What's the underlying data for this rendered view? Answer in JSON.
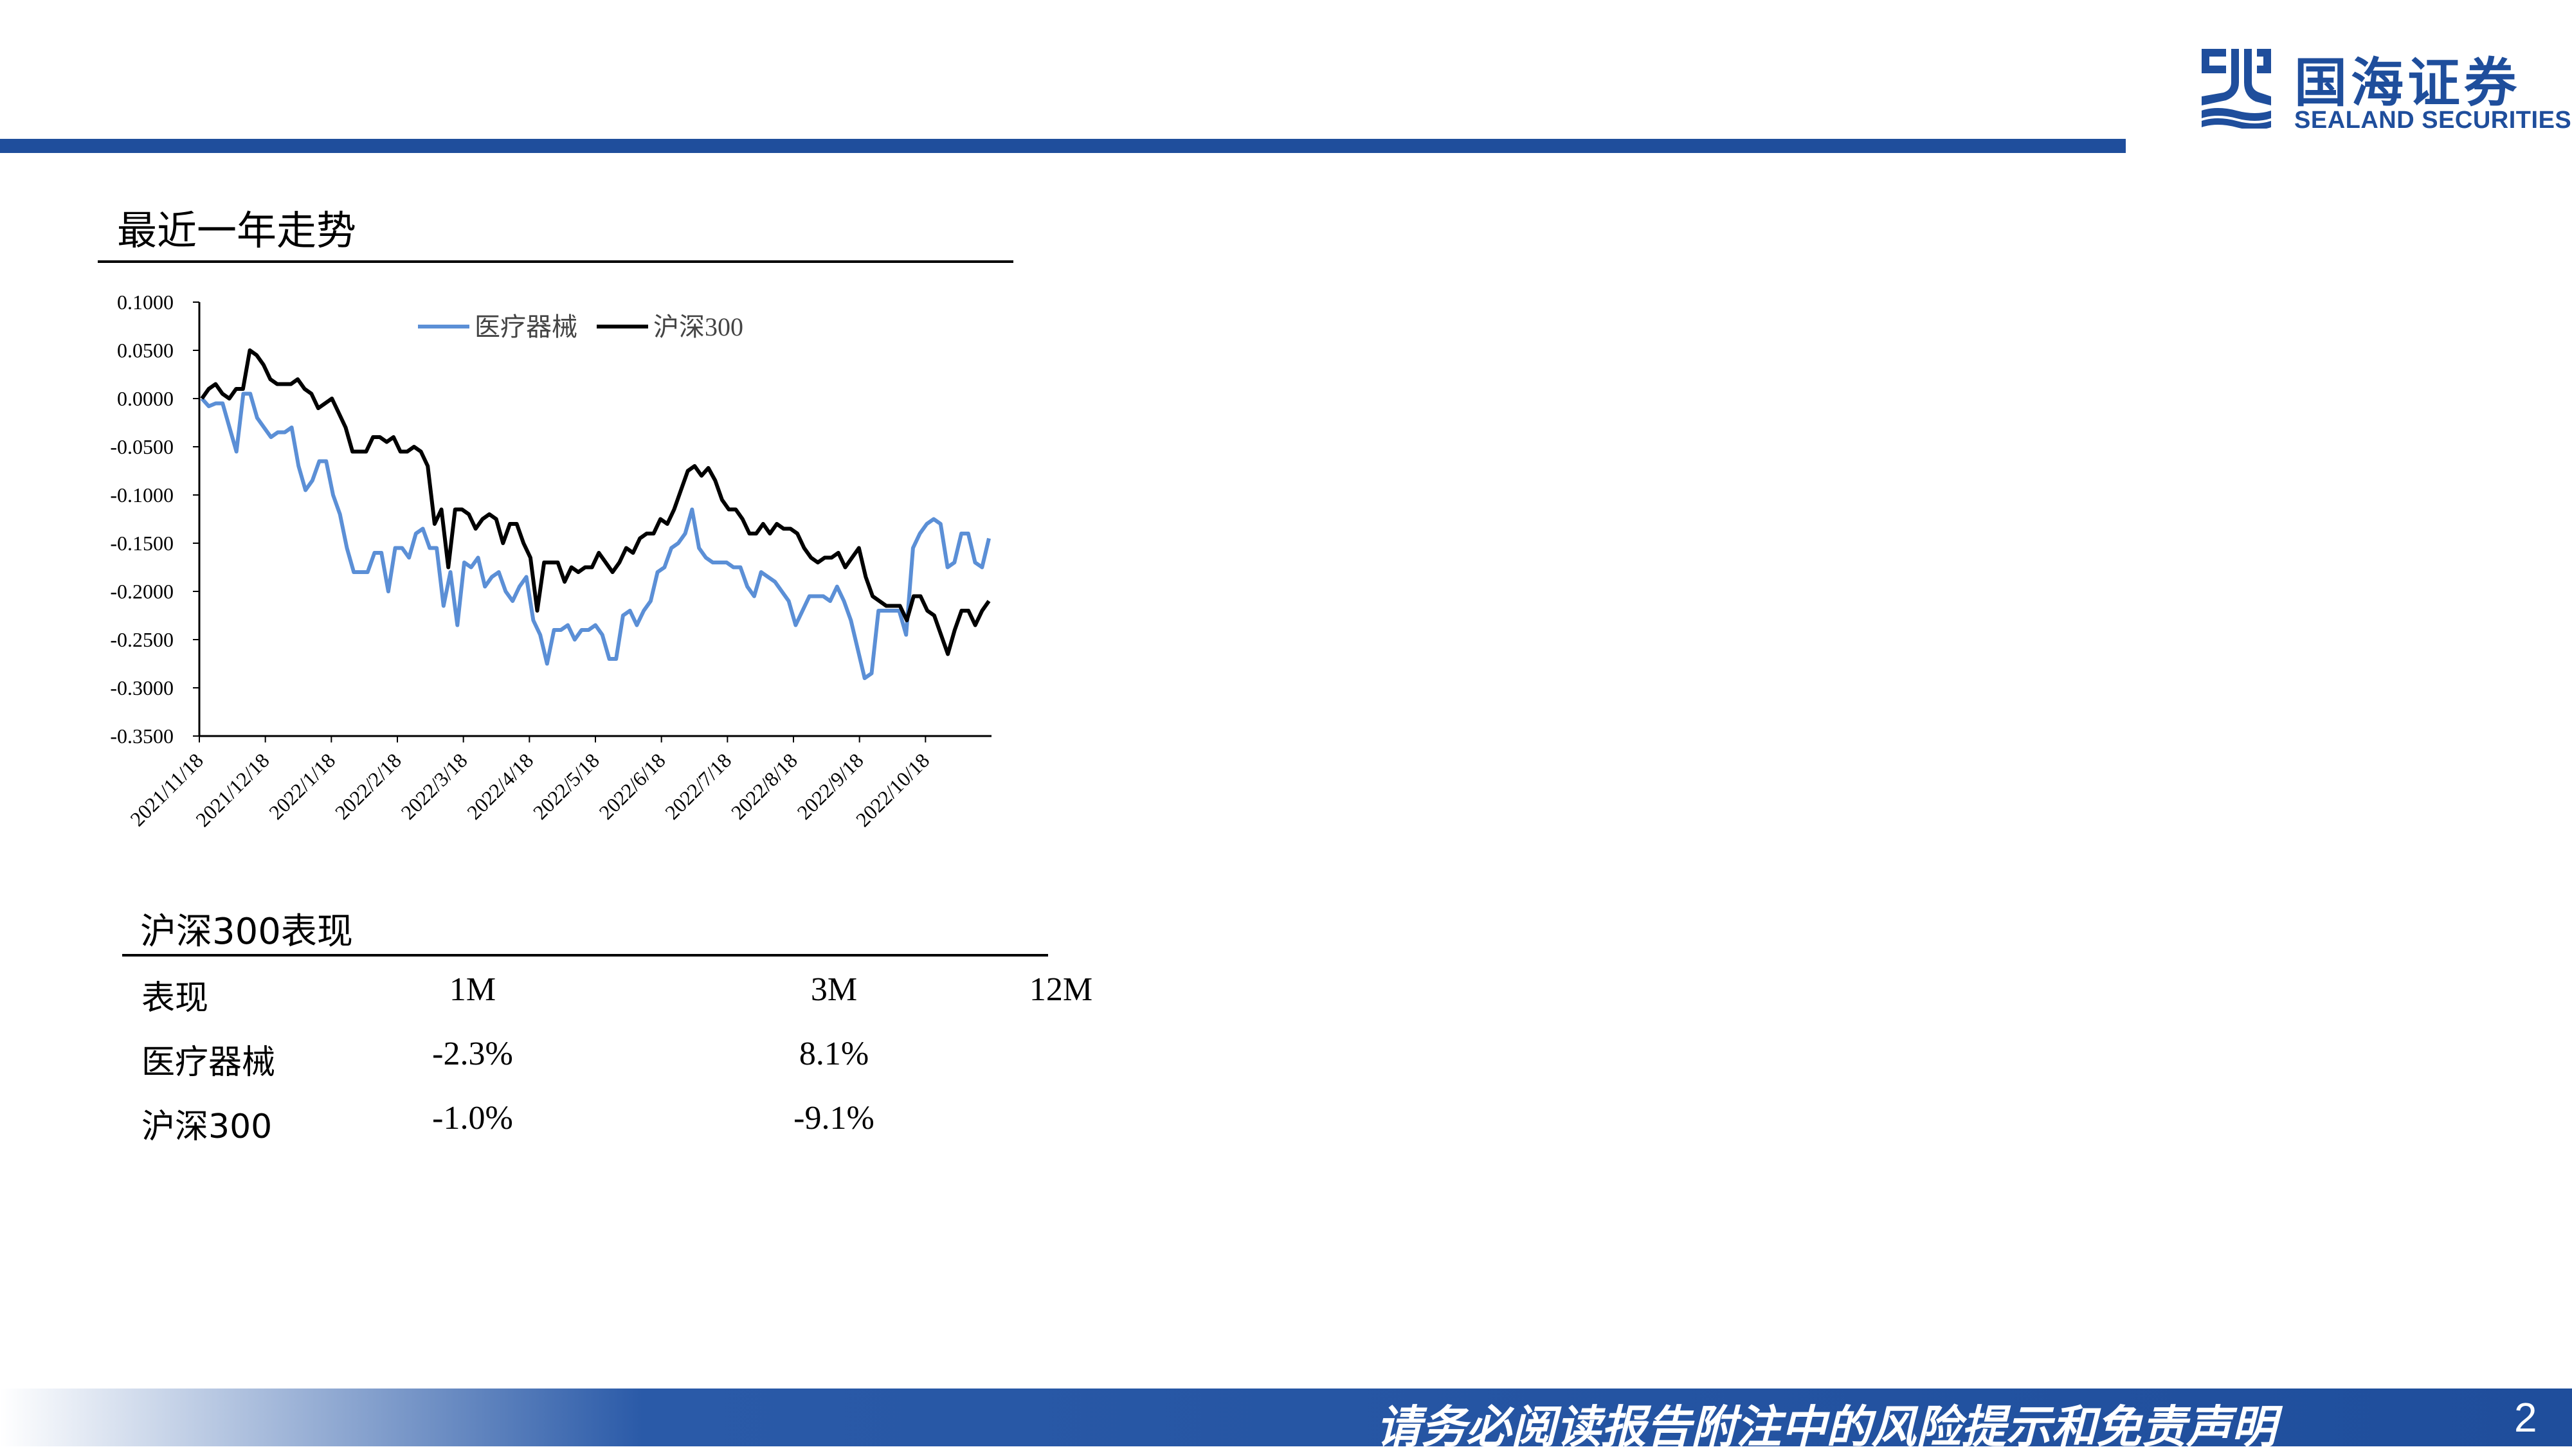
{
  "header": {
    "logo_cn": "国海证券",
    "logo_en": "SEALAND SECURITIES",
    "brand_color": "#1f4e9c"
  },
  "section_title": "最近一年走势",
  "chart_data": {
    "type": "line",
    "title": "",
    "xlabel": "",
    "ylabel": "",
    "ylim": [
      -0.35,
      0.1
    ],
    "yticks": [
      "0.1000",
      "0.0500",
      "0.0000",
      "-0.0500",
      "-0.1000",
      "-0.1500",
      "-0.2000",
      "-0.2500",
      "-0.3000",
      "-0.3500"
    ],
    "xticks": [
      "2021/11/18",
      "2021/12/18",
      "2022/1/18",
      "2022/2/18",
      "2022/3/18",
      "2022/4/18",
      "2022/5/18",
      "2022/6/18",
      "2022/7/18",
      "2022/8/18",
      "2022/9/18",
      "2022/10/18"
    ],
    "legend_position": "top",
    "series": [
      {
        "name": "医疗器械",
        "color": "#5b8fd6",
        "values": [
          0.0,
          -0.008,
          -0.005,
          -0.005,
          -0.03,
          -0.055,
          0.005,
          0.005,
          -0.02,
          -0.03,
          -0.04,
          -0.035,
          -0.035,
          -0.03,
          -0.07,
          -0.095,
          -0.085,
          -0.065,
          -0.065,
          -0.1,
          -0.12,
          -0.155,
          -0.18,
          -0.18,
          -0.18,
          -0.16,
          -0.16,
          -0.2,
          -0.155,
          -0.155,
          -0.165,
          -0.14,
          -0.135,
          -0.155,
          -0.155,
          -0.215,
          -0.18,
          -0.235,
          -0.17,
          -0.175,
          -0.165,
          -0.195,
          -0.185,
          -0.18,
          -0.2,
          -0.21,
          -0.195,
          -0.185,
          -0.23,
          -0.245,
          -0.275,
          -0.24,
          -0.24,
          -0.235,
          -0.25,
          -0.24,
          -0.24,
          -0.235,
          -0.245,
          -0.27,
          -0.27,
          -0.225,
          -0.22,
          -0.235,
          -0.22,
          -0.21,
          -0.18,
          -0.175,
          -0.155,
          -0.15,
          -0.14,
          -0.115,
          -0.155,
          -0.165,
          -0.17,
          -0.17,
          -0.17,
          -0.175,
          -0.175,
          -0.195,
          -0.205,
          -0.18,
          -0.185,
          -0.19,
          -0.2,
          -0.21,
          -0.235,
          -0.22,
          -0.205,
          -0.205,
          -0.205,
          -0.21,
          -0.195,
          -0.21,
          -0.23,
          -0.26,
          -0.29,
          -0.285,
          -0.22,
          -0.22,
          -0.22,
          -0.22,
          -0.245,
          -0.155,
          -0.14,
          -0.13,
          -0.125,
          -0.13,
          -0.175,
          -0.17,
          -0.14,
          -0.14,
          -0.17,
          -0.175,
          -0.145
        ]
      },
      {
        "name": "沪深300",
        "color": "#000000",
        "values": [
          0.0,
          0.01,
          0.015,
          0.005,
          0.0,
          0.01,
          0.01,
          0.05,
          0.045,
          0.035,
          0.02,
          0.015,
          0.015,
          0.015,
          0.02,
          0.01,
          0.005,
          -0.01,
          -0.005,
          0.0,
          -0.015,
          -0.03,
          -0.055,
          -0.055,
          -0.055,
          -0.04,
          -0.04,
          -0.045,
          -0.04,
          -0.055,
          -0.055,
          -0.05,
          -0.055,
          -0.07,
          -0.13,
          -0.115,
          -0.175,
          -0.115,
          -0.115,
          -0.12,
          -0.135,
          -0.125,
          -0.12,
          -0.125,
          -0.15,
          -0.13,
          -0.13,
          -0.15,
          -0.165,
          -0.22,
          -0.17,
          -0.17,
          -0.17,
          -0.19,
          -0.175,
          -0.18,
          -0.175,
          -0.175,
          -0.16,
          -0.17,
          -0.18,
          -0.17,
          -0.155,
          -0.16,
          -0.145,
          -0.14,
          -0.14,
          -0.125,
          -0.13,
          -0.115,
          -0.095,
          -0.075,
          -0.07,
          -0.08,
          -0.072,
          -0.085,
          -0.105,
          -0.115,
          -0.115,
          -0.125,
          -0.14,
          -0.14,
          -0.13,
          -0.14,
          -0.13,
          -0.135,
          -0.135,
          -0.14,
          -0.155,
          -0.165,
          -0.17,
          -0.165,
          -0.165,
          -0.16,
          -0.175,
          -0.165,
          -0.155,
          -0.185,
          -0.205,
          -0.21,
          -0.215,
          -0.215,
          -0.215,
          -0.23,
          -0.205,
          -0.205,
          -0.22,
          -0.225,
          -0.245,
          -0.265,
          -0.24,
          -0.22,
          -0.22,
          -0.235,
          -0.22,
          -0.21
        ]
      }
    ]
  },
  "table": {
    "title": "沪深300表现",
    "headers": [
      "表现",
      "1M",
      "3M",
      "12M"
    ],
    "rows": [
      [
        "医疗器械",
        "-2.3%",
        "8.1%",
        ""
      ],
      [
        "沪深300",
        "-1.0%",
        "-9.1%",
        ""
      ]
    ]
  },
  "footer": {
    "disclaimer": "请务必阅读报告附注中的风险提示和免责声明",
    "page_number": "2"
  }
}
